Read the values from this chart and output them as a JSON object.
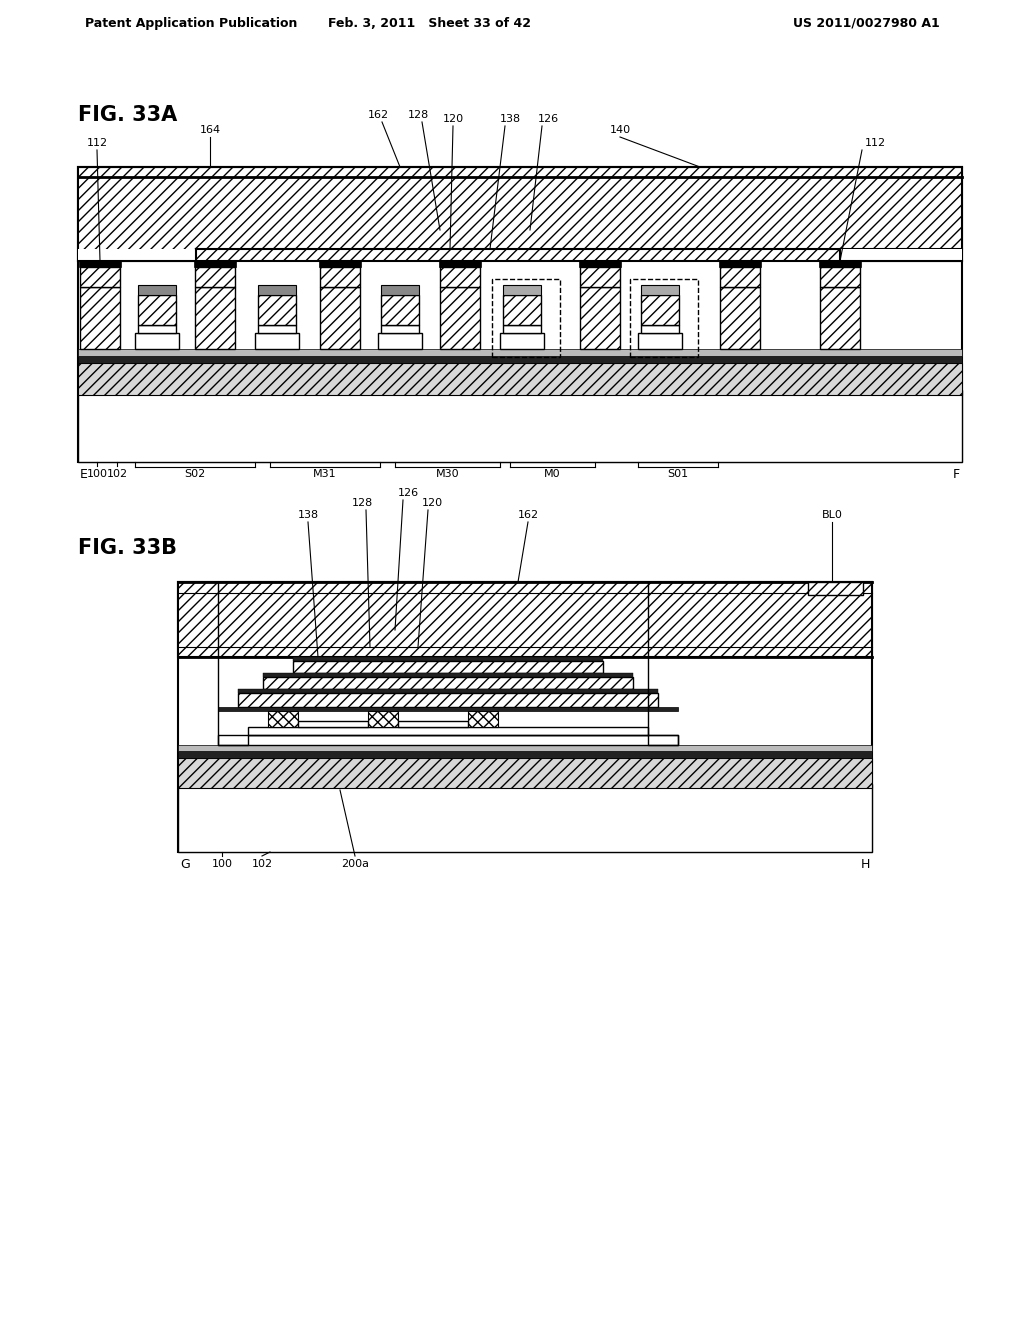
{
  "bg_color": "#ffffff",
  "header_left": "Patent Application Publication",
  "header_mid": "Feb. 3, 2011   Sheet 33 of 42",
  "header_right": "US 2011/0027980 A1",
  "fig_a_label": "FIG. 33A",
  "fig_b_label": "FIG. 33B",
  "fig_a_labels_top": [
    "162",
    "128",
    "120",
    "138",
    "126",
    "140",
    "164",
    "112",
    "112"
  ],
  "fig_a_labels_bottom": [
    "E",
    "100",
    "102",
    "S02",
    "M31",
    "M30",
    "M0",
    "S01",
    "F"
  ],
  "fig_b_labels_top": [
    "138",
    "128",
    "126",
    "120",
    "162",
    "BL0"
  ],
  "fig_b_labels_bottom": [
    "G",
    "100",
    "102",
    "200a",
    "H"
  ]
}
